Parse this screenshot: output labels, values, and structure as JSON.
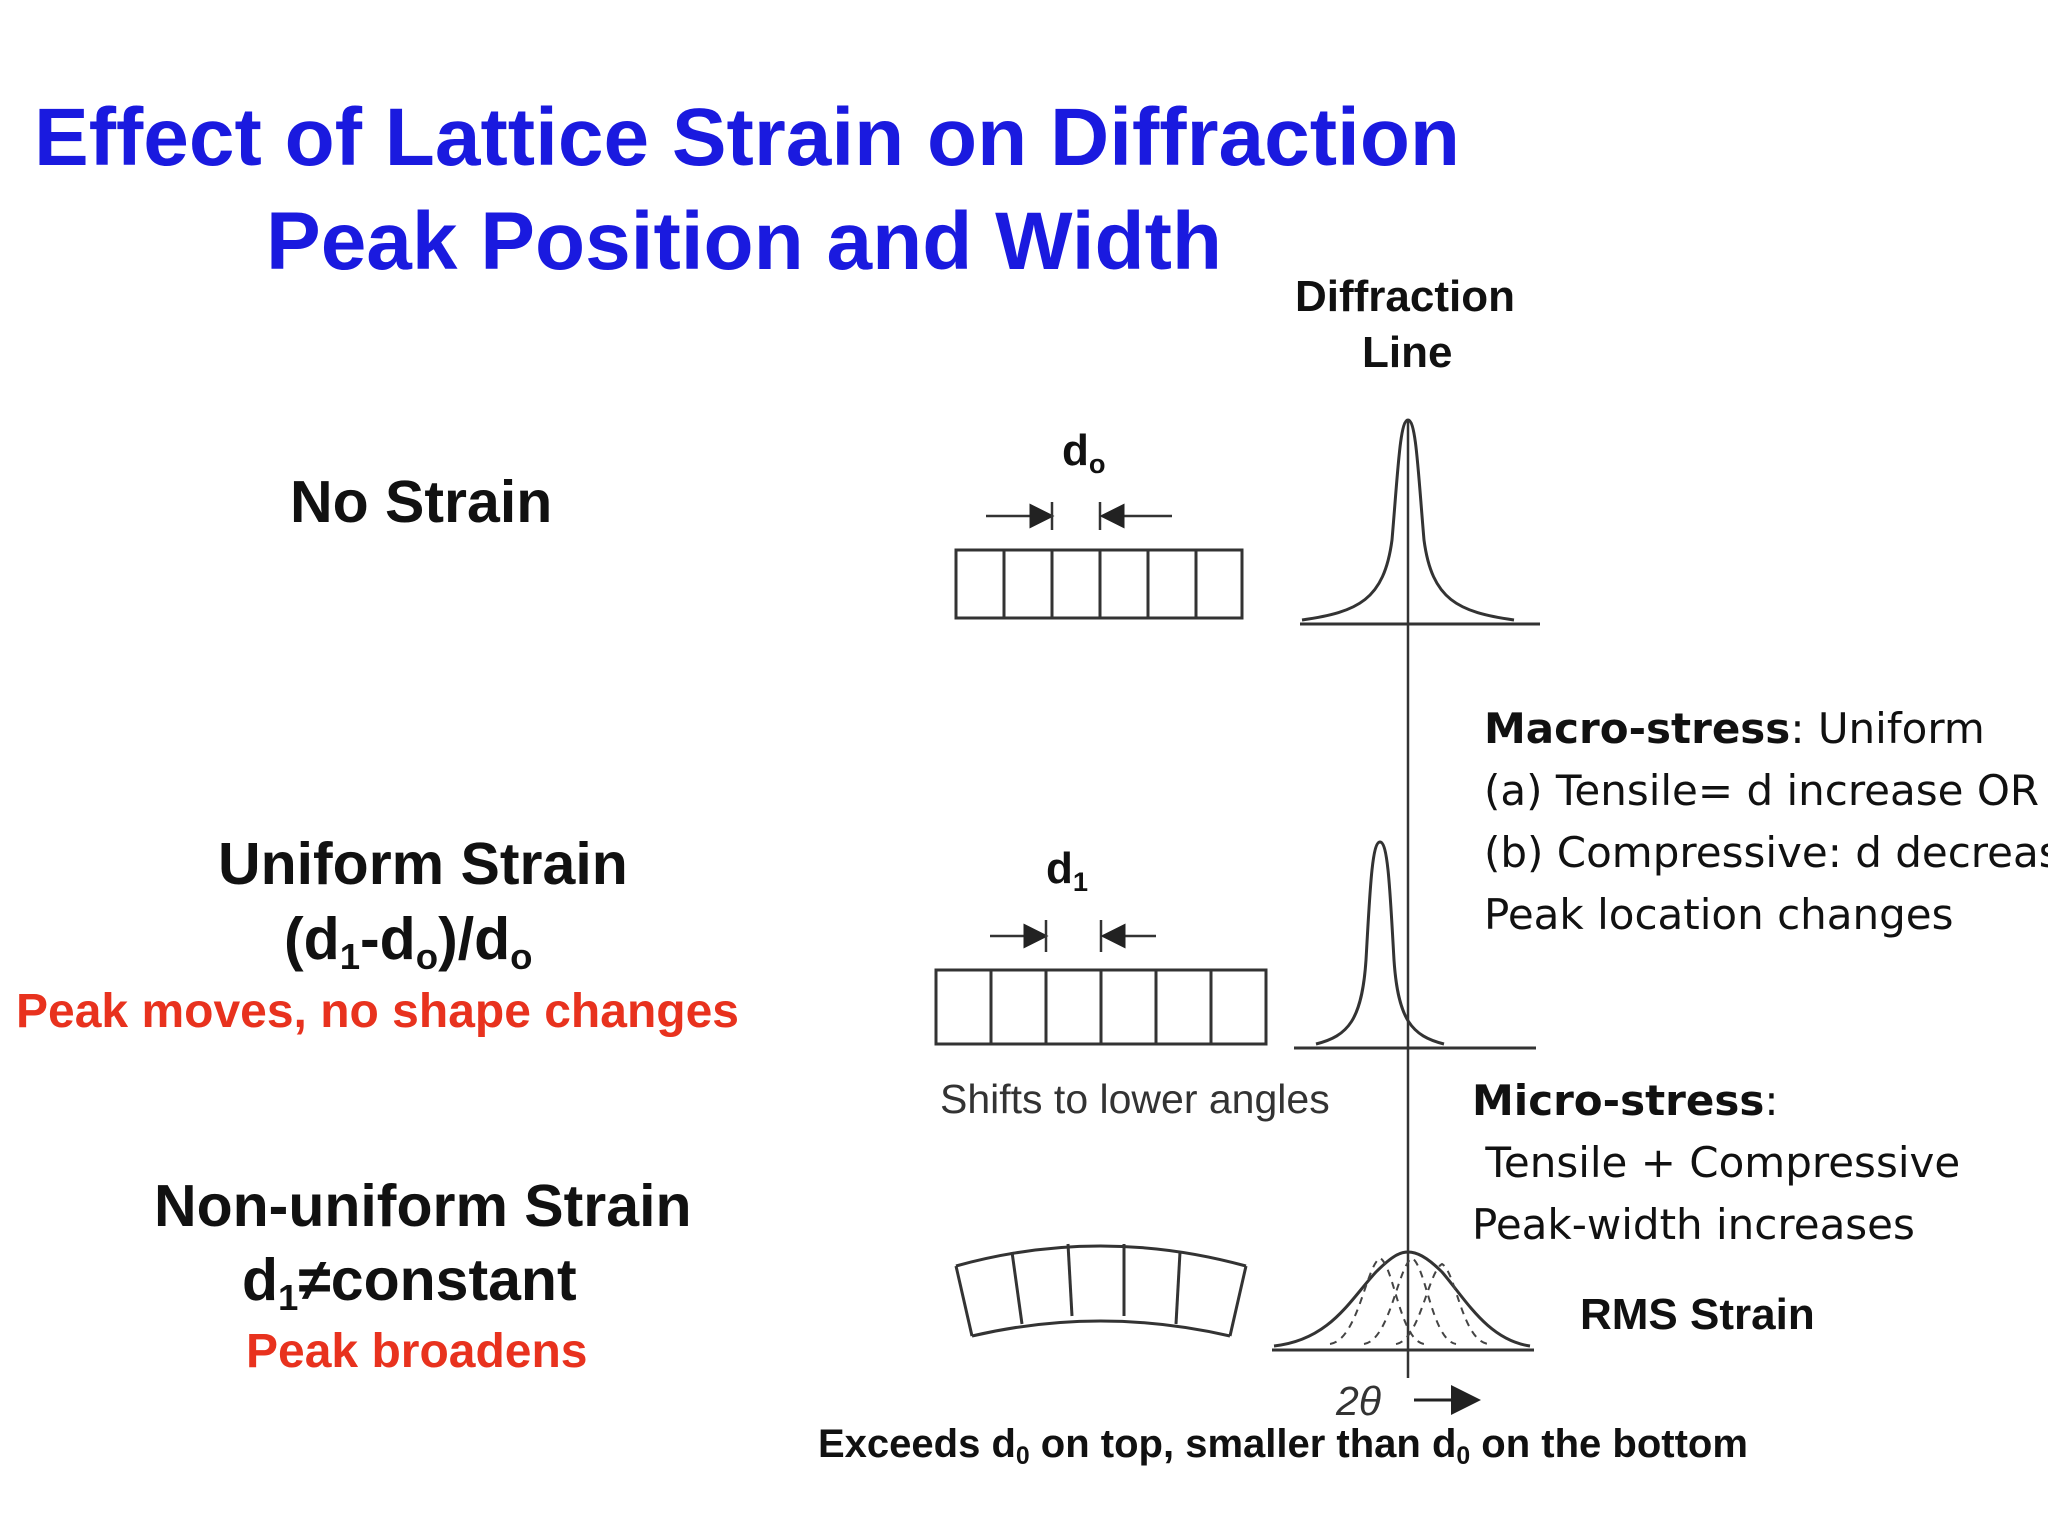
{
  "title": {
    "line1": "Effect of Lattice Strain on Diffraction",
    "line2": "Peak Position and Width"
  },
  "diffraction_line_label": {
    "line1": "Diffraction",
    "line2": "Line"
  },
  "rows": {
    "no_strain": {
      "label": "No Strain",
      "spacing_label": "d",
      "spacing_sub": "o"
    },
    "uniform": {
      "label": "Uniform Strain",
      "formula_a": "(d",
      "formula_sub1": "1",
      "formula_b": "-d",
      "formula_sub2": "o",
      "formula_c": ")/d",
      "formula_sub3": "o",
      "effect": "Peak moves, no shape changes",
      "spacing_label": "d",
      "spacing_sub": "1",
      "shift_caption": "Shifts to lower angles"
    },
    "nonuniform": {
      "label": "Non-uniform Strain",
      "formula_a": "d",
      "formula_sub": "1",
      "formula_b": "≠constant",
      "effect": "Peak broadens",
      "rms_label": "RMS Strain"
    }
  },
  "macro_note": {
    "heading": "Macro-stress",
    "heading_rest": ": Uniform",
    "line2": "(a) Tensile= d increase OR",
    "line3": "(b) Compressive: d decrease",
    "line4": "Peak location changes"
  },
  "micro_note": {
    "heading": "Micro-stress",
    "heading_rest": ":",
    "line2": " Tensile + Compressive",
    "line3": "Peak-width increases"
  },
  "axis": {
    "symbol": "2θ"
  },
  "bottom_caption": {
    "a": "Exceeds d",
    "sub1": "0",
    "b": " on top, smaller than d",
    "sub2": "0",
    "c": " on the bottom"
  }
}
